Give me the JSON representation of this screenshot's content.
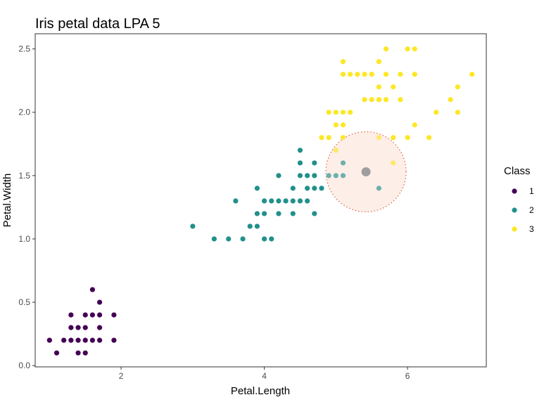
{
  "chart_data": {
    "type": "scatter",
    "title": "Iris petal data LPA 5",
    "xlabel": "Petal.Length",
    "ylabel": "Petal.Width",
    "xlim": [
      0.8,
      7.1
    ],
    "ylim": [
      -0.01,
      2.62
    ],
    "xticks": [
      2,
      4,
      6
    ],
    "yticks": [
      0.0,
      0.5,
      1.0,
      1.5,
      2.0,
      2.5
    ],
    "ytick_labels": [
      "0.0",
      "0.5",
      "1.0",
      "1.5",
      "2.0",
      "2.5"
    ],
    "grid": false,
    "legend": {
      "title": "Class",
      "placement": "right",
      "entries": [
        "1",
        "2",
        "3"
      ]
    },
    "colors": {
      "1": "#440154",
      "2": "#21908C",
      "3": "#FDE725"
    },
    "series": [
      {
        "name": "1",
        "color": "#440154",
        "points": [
          [
            1.0,
            0.2
          ],
          [
            1.1,
            0.1
          ],
          [
            1.2,
            0.2
          ],
          [
            1.3,
            0.2
          ],
          [
            1.3,
            0.3
          ],
          [
            1.3,
            0.4
          ],
          [
            1.4,
            0.1
          ],
          [
            1.4,
            0.2
          ],
          [
            1.4,
            0.3
          ],
          [
            1.5,
            0.1
          ],
          [
            1.5,
            0.2
          ],
          [
            1.5,
            0.3
          ],
          [
            1.5,
            0.4
          ],
          [
            1.6,
            0.2
          ],
          [
            1.6,
            0.4
          ],
          [
            1.6,
            0.6
          ],
          [
            1.7,
            0.2
          ],
          [
            1.7,
            0.3
          ],
          [
            1.7,
            0.4
          ],
          [
            1.7,
            0.5
          ],
          [
            1.9,
            0.2
          ],
          [
            1.9,
            0.4
          ]
        ]
      },
      {
        "name": "2",
        "color": "#21908C",
        "points": [
          [
            3.0,
            1.1
          ],
          [
            3.3,
            1.0
          ],
          [
            3.5,
            1.0
          ],
          [
            3.6,
            1.3
          ],
          [
            3.7,
            1.0
          ],
          [
            3.8,
            1.1
          ],
          [
            3.9,
            1.1
          ],
          [
            3.9,
            1.2
          ],
          [
            3.9,
            1.4
          ],
          [
            4.0,
            1.0
          ],
          [
            4.0,
            1.2
          ],
          [
            4.0,
            1.3
          ],
          [
            4.1,
            1.0
          ],
          [
            4.1,
            1.3
          ],
          [
            4.2,
            1.2
          ],
          [
            4.2,
            1.3
          ],
          [
            4.2,
            1.5
          ],
          [
            4.3,
            1.3
          ],
          [
            4.4,
            1.2
          ],
          [
            4.4,
            1.3
          ],
          [
            4.4,
            1.4
          ],
          [
            4.5,
            1.3
          ],
          [
            4.5,
            1.5
          ],
          [
            4.5,
            1.6
          ],
          [
            4.5,
            1.7
          ],
          [
            4.6,
            1.3
          ],
          [
            4.6,
            1.4
          ],
          [
            4.6,
            1.5
          ],
          [
            4.7,
            1.2
          ],
          [
            4.7,
            1.4
          ],
          [
            4.7,
            1.5
          ],
          [
            4.7,
            1.6
          ],
          [
            4.8,
            1.4
          ],
          [
            4.9,
            1.5
          ],
          [
            5.0,
            1.5
          ],
          [
            5.1,
            1.5
          ],
          [
            5.1,
            1.6
          ],
          [
            5.6,
            1.4
          ]
        ]
      },
      {
        "name": "3",
        "color": "#FDE725",
        "points": [
          [
            4.8,
            1.8
          ],
          [
            4.9,
            1.8
          ],
          [
            4.9,
            2.0
          ],
          [
            5.0,
            1.7
          ],
          [
            5.0,
            1.9
          ],
          [
            5.0,
            2.0
          ],
          [
            5.1,
            1.8
          ],
          [
            5.1,
            1.9
          ],
          [
            5.1,
            2.0
          ],
          [
            5.1,
            2.3
          ],
          [
            5.1,
            2.4
          ],
          [
            5.2,
            2.0
          ],
          [
            5.2,
            2.3
          ],
          [
            5.3,
            2.3
          ],
          [
            5.4,
            2.1
          ],
          [
            5.4,
            2.3
          ],
          [
            5.5,
            2.1
          ],
          [
            5.5,
            2.3
          ],
          [
            5.6,
            1.8
          ],
          [
            5.6,
            2.1
          ],
          [
            5.6,
            2.2
          ],
          [
            5.6,
            2.4
          ],
          [
            5.7,
            2.1
          ],
          [
            5.7,
            2.3
          ],
          [
            5.7,
            2.5
          ],
          [
            5.8,
            1.6
          ],
          [
            5.8,
            1.8
          ],
          [
            5.8,
            2.2
          ],
          [
            5.9,
            2.1
          ],
          [
            5.9,
            2.3
          ],
          [
            6.0,
            1.8
          ],
          [
            6.0,
            2.5
          ],
          [
            6.1,
            1.9
          ],
          [
            6.1,
            2.3
          ],
          [
            6.1,
            2.5
          ],
          [
            6.3,
            1.8
          ],
          [
            6.4,
            2.0
          ],
          [
            6.6,
            2.1
          ],
          [
            6.7,
            2.0
          ],
          [
            6.7,
            2.2
          ],
          [
            6.9,
            2.3
          ]
        ]
      }
    ],
    "annotations": [
      {
        "type": "centroid",
        "x": 5.42,
        "y": 1.53,
        "color": "#9E9E9E"
      },
      {
        "type": "circle",
        "cx": 5.42,
        "cy": 1.53,
        "radius_x_units": 0.56,
        "fill": "#FDEEE8",
        "stroke": "#D94A1E",
        "style": "dotted"
      }
    ]
  }
}
